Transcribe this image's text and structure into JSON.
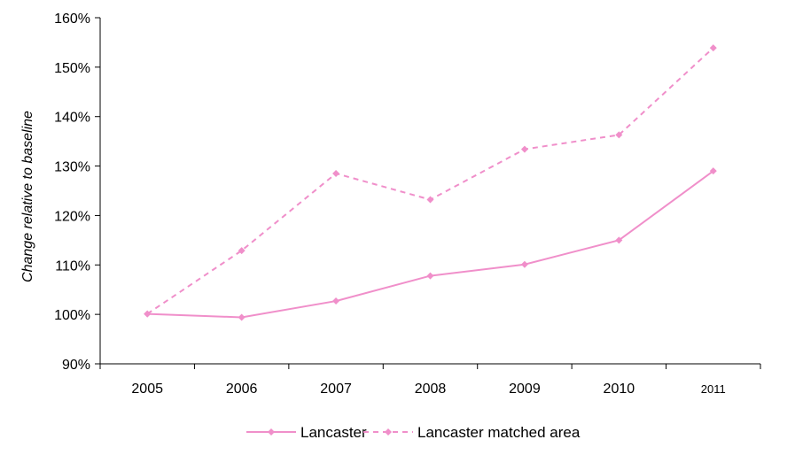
{
  "chart_data": {
    "type": "line",
    "categories": [
      "2005",
      "2006",
      "2007",
      "2008",
      "2009",
      "2010",
      "2011"
    ],
    "ylabel": "Change relative to baseline",
    "ylim": [
      90,
      160
    ],
    "yticks": [
      "90%",
      "100%",
      "110%",
      "120%",
      "130%",
      "140%",
      "150%",
      "160%"
    ],
    "ytick_values": [
      90,
      100,
      110,
      120,
      130,
      140,
      150,
      160
    ],
    "grid": false,
    "legend_position": "bottom",
    "series": [
      {
        "name": "Lancaster",
        "values": [
          100.1,
          99.4,
          102.7,
          107.8,
          110.1,
          115.0,
          129.0
        ],
        "color": "#f08fca",
        "style": "solid"
      },
      {
        "name": "Lancaster matched area",
        "values": [
          100.1,
          112.9,
          128.5,
          123.2,
          133.4,
          136.3,
          153.9
        ],
        "color": "#f08fca",
        "style": "dashed"
      }
    ]
  }
}
